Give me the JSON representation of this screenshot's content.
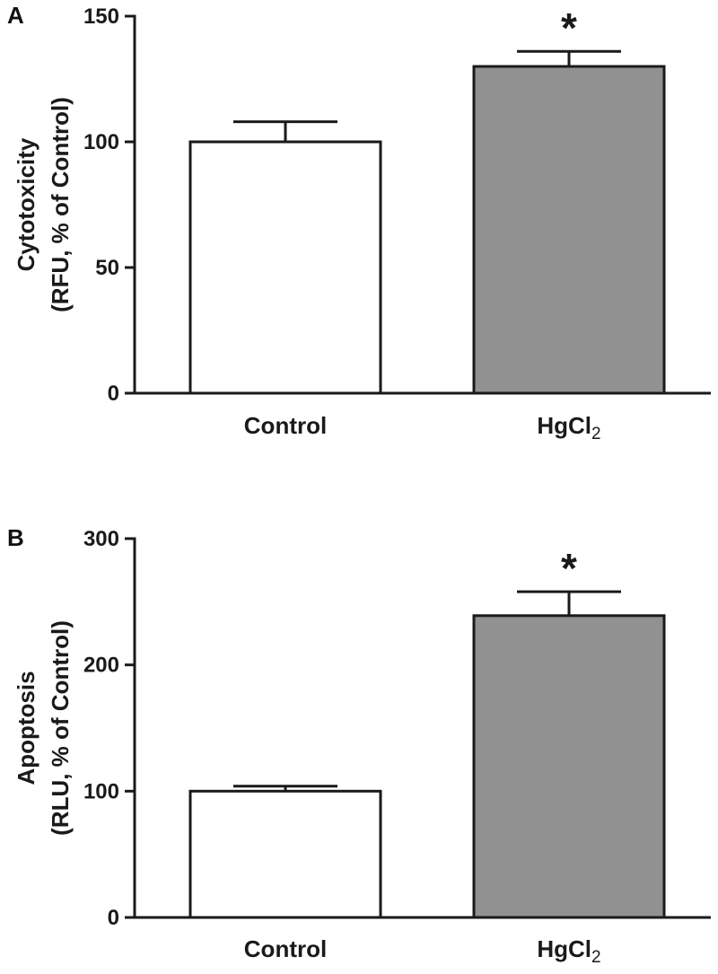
{
  "chart_data": [
    {
      "panel": "A",
      "type": "bar",
      "ylabel_line1": "Cytotoxicity",
      "ylabel_line2": "(RFU, % of Control)",
      "categories": [
        "Control",
        "HgCl2"
      ],
      "category_labels": [
        {
          "main": "Control",
          "sub": ""
        },
        {
          "main": "HgCl",
          "sub": "2"
        }
      ],
      "values": [
        100,
        130
      ],
      "errors": [
        8,
        6
      ],
      "significance": [
        "",
        "*"
      ],
      "bar_colors": [
        "#ffffff",
        "#919191"
      ],
      "ylim": [
        0,
        150
      ],
      "yticks": [
        0,
        50,
        100,
        150
      ],
      "grid": false
    },
    {
      "panel": "B",
      "type": "bar",
      "ylabel_line1": "Apoptosis",
      "ylabel_line2": "(RLU, % of Control)",
      "categories": [
        "Control",
        "HgCl2"
      ],
      "category_labels": [
        {
          "main": "Control",
          "sub": ""
        },
        {
          "main": "HgCl",
          "sub": "2"
        }
      ],
      "values": [
        100,
        239
      ],
      "errors": [
        4,
        19
      ],
      "significance": [
        "",
        "*"
      ],
      "bar_colors": [
        "#ffffff",
        "#919191"
      ],
      "ylim": [
        0,
        300
      ],
      "yticks": [
        0,
        100,
        200,
        300
      ],
      "grid": false
    }
  ]
}
